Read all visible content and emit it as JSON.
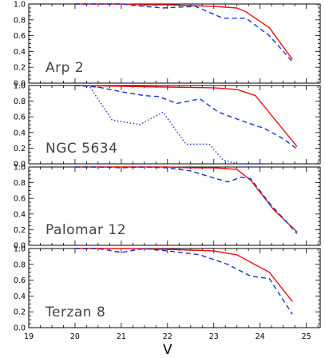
{
  "chart_data": {
    "type": "line",
    "xlabel": "V",
    "xlim": [
      19,
      25.3
    ],
    "x_ticks": [
      "19",
      "20",
      "21",
      "22",
      "23",
      "24",
      "25"
    ],
    "ylim": [
      0.0,
      1.0
    ],
    "y_ticks": [
      "0.0",
      "0.2",
      "0.4",
      "0.6",
      "0.8",
      "1.0"
    ],
    "colors": {
      "red": "#ee1111",
      "blue": "#1133dd"
    },
    "panels": [
      {
        "label": "Arp 2",
        "series": [
          {
            "style": "solid",
            "color": "red",
            "x": [
              20.0,
              20.5,
              21.0,
              21.5,
              22.0,
              22.5,
              23.0,
              23.5,
              23.7,
              24.2,
              24.7
            ],
            "y": [
              1.0,
              1.0,
              1.0,
              0.99,
              0.99,
              0.98,
              0.97,
              0.95,
              0.9,
              0.7,
              0.3
            ]
          },
          {
            "style": "dashed",
            "color": "blue",
            "x": [
              20.0,
              20.5,
              21.0,
              21.5,
              21.9,
              22.6,
              23.2,
              23.7,
              24.2,
              24.7
            ],
            "y": [
              1.0,
              1.0,
              1.0,
              0.97,
              0.95,
              0.97,
              0.82,
              0.82,
              0.6,
              0.27
            ]
          }
        ]
      },
      {
        "label": "NGC 5634",
        "series": [
          {
            "style": "solid",
            "color": "red",
            "x": [
              20.0,
              21.0,
              22.0,
              23.0,
              23.5,
              23.9,
              24.8
            ],
            "y": [
              1.0,
              0.99,
              0.98,
              0.97,
              0.95,
              0.87,
              0.22
            ]
          },
          {
            "style": "dashed",
            "color": "blue",
            "x": [
              20.0,
              20.5,
              21.0,
              21.5,
              21.8,
              22.2,
              22.7,
              23.1,
              23.6,
              24.1,
              24.5,
              24.8
            ],
            "y": [
              1.0,
              0.98,
              0.92,
              0.87,
              0.86,
              0.77,
              0.83,
              0.66,
              0.55,
              0.45,
              0.32,
              0.19
            ]
          },
          {
            "style": "dotted",
            "color": "blue",
            "x": [
              20.0,
              20.3,
              20.8,
              21.4,
              21.9,
              22.4,
              22.9,
              23.2,
              23.5,
              24.0
            ],
            "y": [
              1.0,
              1.0,
              0.56,
              0.5,
              0.66,
              0.25,
              0.25,
              0.05,
              0.0,
              0.0
            ]
          }
        ]
      },
      {
        "label": "Palomar 12",
        "series": [
          {
            "style": "solid",
            "color": "red",
            "x": [
              20.0,
              21.0,
              22.0,
              22.5,
              23.0,
              23.5,
              23.8,
              24.3,
              24.8
            ],
            "y": [
              1.0,
              1.0,
              1.0,
              0.99,
              0.99,
              0.97,
              0.83,
              0.45,
              0.17
            ]
          },
          {
            "style": "dashed",
            "color": "blue",
            "x": [
              20.0,
              20.5,
              21.0,
              21.5,
              22.0,
              22.5,
              23.0,
              23.3,
              23.6,
              23.8,
              24.2,
              24.8
            ],
            "y": [
              1.0,
              1.0,
              0.99,
              1.0,
              0.99,
              0.95,
              0.86,
              0.81,
              0.87,
              0.85,
              0.54,
              0.15
            ]
          }
        ]
      },
      {
        "label": "Terzan 8",
        "series": [
          {
            "style": "solid",
            "color": "red",
            "x": [
              20.0,
              21.0,
              22.0,
              22.5,
              23.0,
              23.5,
              24.2,
              24.7
            ],
            "y": [
              1.0,
              1.0,
              0.99,
              0.98,
              0.97,
              0.92,
              0.7,
              0.33
            ]
          },
          {
            "style": "dashed",
            "color": "blue",
            "x": [
              20.0,
              20.5,
              21.0,
              21.5,
              22.0,
              22.7,
              23.3,
              23.8,
              24.2,
              24.7
            ],
            "y": [
              1.0,
              1.0,
              0.95,
              1.0,
              0.97,
              0.92,
              0.8,
              0.65,
              0.62,
              0.17
            ]
          }
        ]
      }
    ]
  }
}
